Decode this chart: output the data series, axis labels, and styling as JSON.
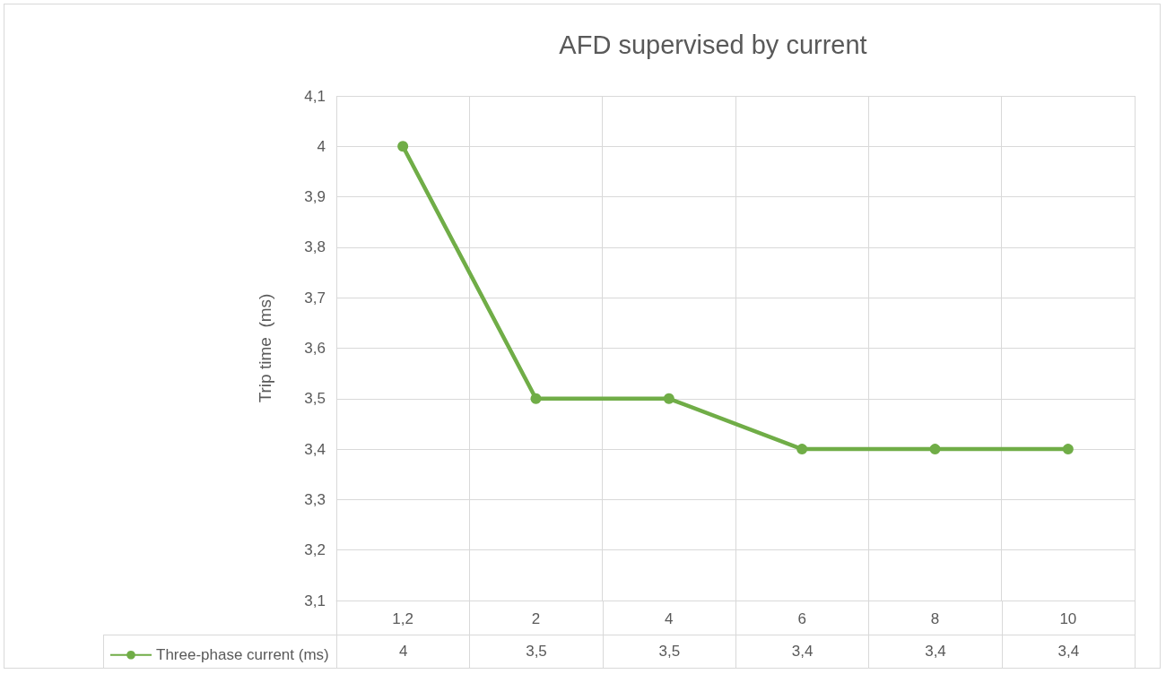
{
  "chart_data": {
    "type": "line",
    "title": "AFD supervised by current",
    "ylabel": "Trip time  (ms)",
    "categories": [
      "1,2",
      "2",
      "4",
      "6",
      "8",
      "10"
    ],
    "series": [
      {
        "name": "Three-phase current (ms)",
        "color": "#70ad47",
        "values": [
          4,
          3.5,
          3.5,
          3.4,
          3.4,
          3.4
        ],
        "value_labels": [
          "4",
          "3,5",
          "3,5",
          "3,4",
          "3,4",
          "3,4"
        ]
      }
    ],
    "ylim": [
      3.1,
      4.1
    ],
    "yticks": [
      {
        "value": 3.1,
        "label": "3,1"
      },
      {
        "value": 3.2,
        "label": "3,2"
      },
      {
        "value": 3.3,
        "label": "3,3"
      },
      {
        "value": 3.4,
        "label": "3,4"
      },
      {
        "value": 3.5,
        "label": "3,5"
      },
      {
        "value": 3.6,
        "label": "3,6"
      },
      {
        "value": 3.7,
        "label": "3,7"
      },
      {
        "value": 3.8,
        "label": "3,8"
      },
      {
        "value": 3.9,
        "label": "3,9"
      },
      {
        "value": 4,
        "label": "4"
      },
      {
        "value": 4.1,
        "label": "4,1"
      }
    ],
    "grid": true,
    "legend": "bottom left",
    "marker": "circle"
  }
}
